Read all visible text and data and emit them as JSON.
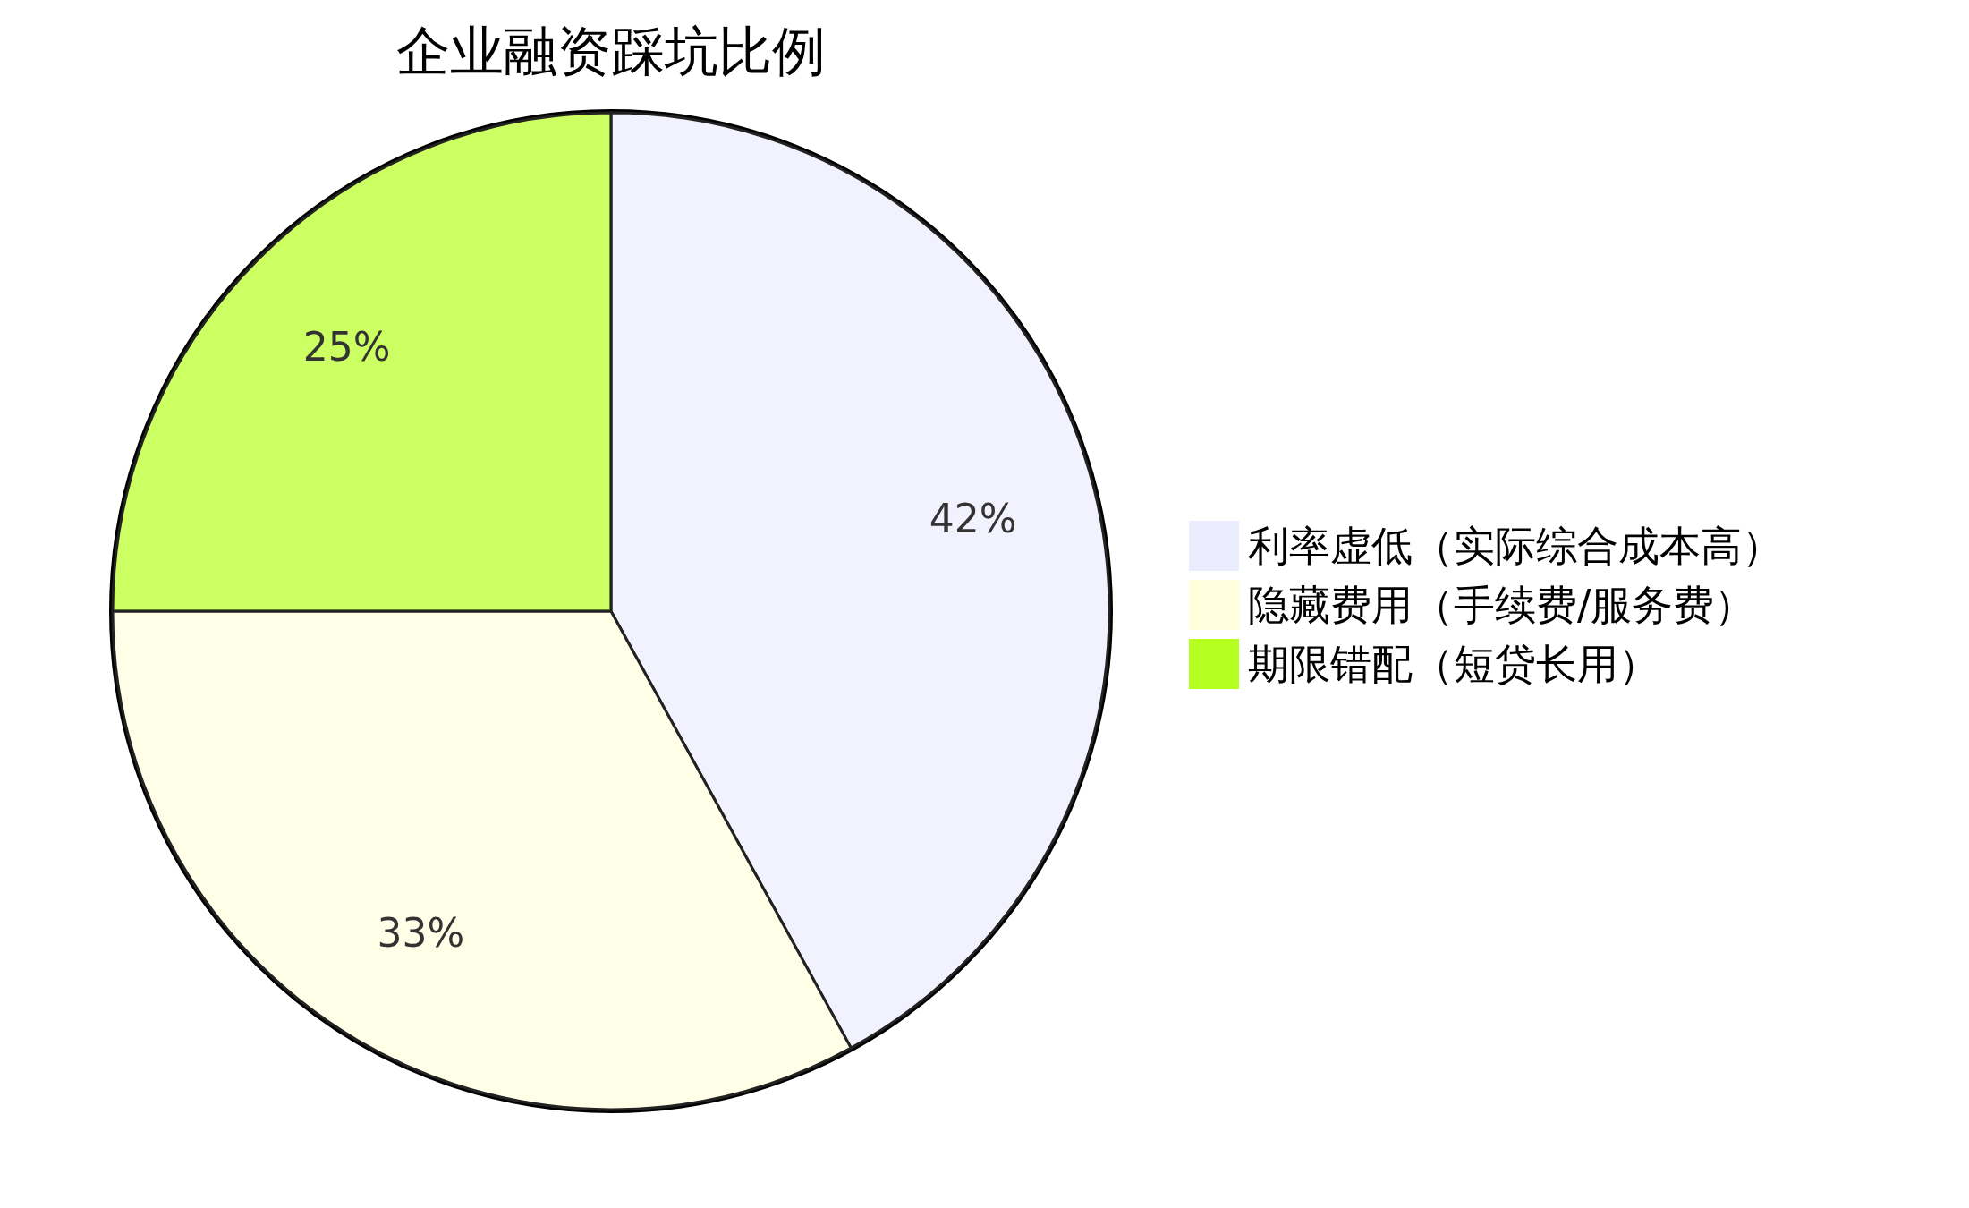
{
  "chart_data": {
    "type": "pie",
    "title": "企业融资踩坑比例",
    "categories": [
      "利率虚低（实际综合成本高）",
      "隐藏费用（手续费/服务费）",
      "期限错配（短贷长用）"
    ],
    "values": [
      42,
      33,
      25
    ],
    "colors": [
      "#ececff",
      "#ffffde",
      "#b5ff20"
    ],
    "value_labels": [
      "42%",
      "33%",
      "25%"
    ],
    "legend": "right"
  }
}
